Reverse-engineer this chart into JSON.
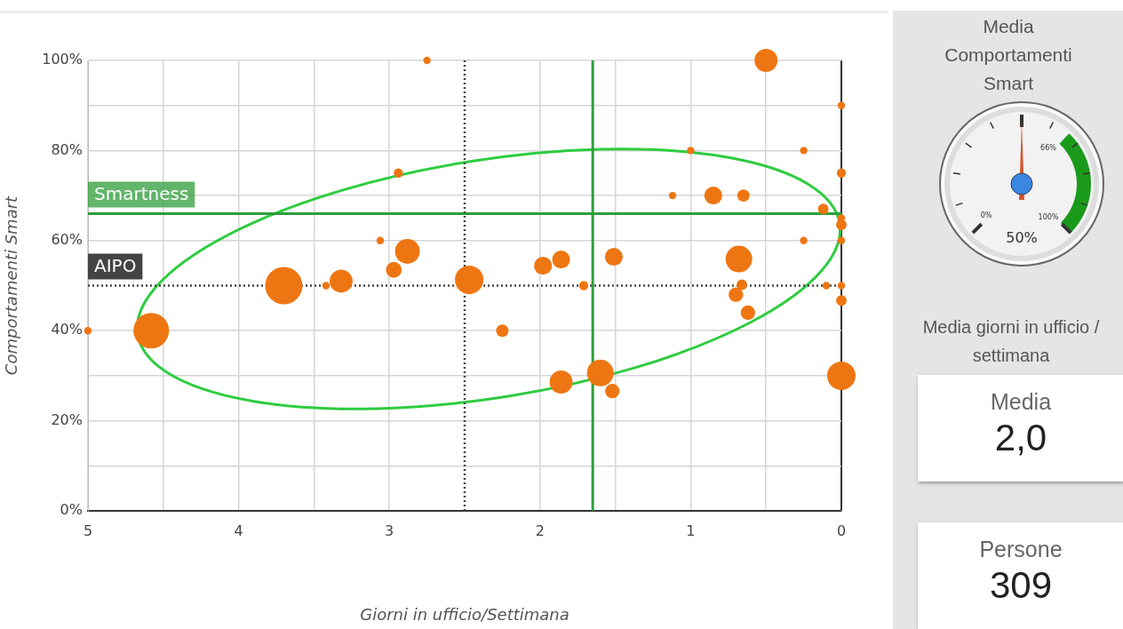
{
  "chart_data": [
    {
      "type": "bubble",
      "xlabel": "Giorni in ufficio/Settimana",
      "ylabel": "Comportamenti Smart",
      "x": [
        2.75,
        2.94,
        5,
        4.58,
        3.7,
        3.42,
        3.32,
        3.06,
        2.88,
        2.97,
        2.47,
        0.5,
        0,
        1.0,
        0.25,
        0,
        1.12,
        0.85,
        0.65,
        0.12,
        0,
        0,
        0.25,
        0,
        1.98,
        1.86,
        1.51,
        0.68,
        1.71,
        0.66,
        0.7,
        0.62,
        0.1,
        0,
        0,
        2.25,
        1.86,
        1.6,
        1.52,
        0
      ],
      "series": [
        {
          "color": "#ee7612",
          "values": [
            100,
            75,
            40,
            40,
            50,
            50,
            51,
            60,
            57.6,
            53.5,
            51.3,
            100,
            90,
            80,
            80,
            75,
            70,
            70,
            70,
            67,
            65,
            63.5,
            60,
            60,
            54.4,
            55.8,
            56.4,
            55.9,
            50,
            50.2,
            48,
            44,
            50,
            50,
            46.7,
            40,
            28.6,
            30.6,
            26.6,
            30
          ],
          "sizes": [
            0.04,
            0.06,
            0.04,
            0.91,
            1,
            0.04,
            0.38,
            0.04,
            0.44,
            0.18,
            0.58,
            0.38,
            0.04,
            0.04,
            0.04,
            0.06,
            0.04,
            0.23,
            0.11,
            0.08,
            0.04,
            0.08,
            0.04,
            0.04,
            0.23,
            0.23,
            0.23,
            0.51,
            0.06,
            0.08,
            0.15,
            0.15,
            0.04,
            0.04,
            0.08,
            0.11,
            0.38,
            0.51,
            0.15,
            0.58
          ]
        }
      ],
      "xlim": [
        5,
        0
      ],
      "xticks": [
        5,
        {
          "value": 4.5,
          "label": null
        },
        4,
        {
          "value": 3.5,
          "label": null
        },
        3,
        2,
        {
          "value": 1.5,
          "label": null
        },
        1,
        {
          "value": 0.5,
          "label": null
        },
        0
      ],
      "ylim": [
        0,
        100
      ],
      "yticks": [
        {
          "value": 0,
          "label": "0%"
        },
        {
          "value": 10,
          "label": null
        },
        {
          "value": 20,
          "label": "20%"
        },
        {
          "value": 30,
          "label": null
        },
        {
          "value": 40,
          "label": "40%"
        },
        {
          "value": 60,
          "label": "60%"
        },
        {
          "value": 70,
          "label": null
        },
        {
          "value": 80,
          "label": "80%"
        },
        {
          "value": 90,
          "label": null
        },
        {
          "value": 100,
          "label": "100%"
        }
      ],
      "grid": true,
      "legend": false,
      "ref_lines": [
        {
          "axis": "y",
          "value": 66,
          "label": "Smartness",
          "color": "#2e9e3a",
          "line_style": "solid"
        },
        {
          "axis": "y",
          "value": 50,
          "label": "AIPO",
          "color": "#444444",
          "line_style": "dotted"
        },
        {
          "axis": "x",
          "value": 1.65,
          "color": "#2e9e3a",
          "line_style": "solid"
        },
        {
          "axis": "x",
          "value": 2.5,
          "color": "#444444",
          "line_style": "dotted"
        }
      ]
    },
    {
      "type": "other",
      "title": "Media Comportamenti Smart",
      "annotations": [
        "0%",
        "66%",
        "100%",
        "50%"
      ]
    },
    {
      "type": "other",
      "title": "Media giorni in ufficio / settimana",
      "annotations": [
        "Media",
        "2,0",
        "Persone",
        "309"
      ]
    }
  ]
}
